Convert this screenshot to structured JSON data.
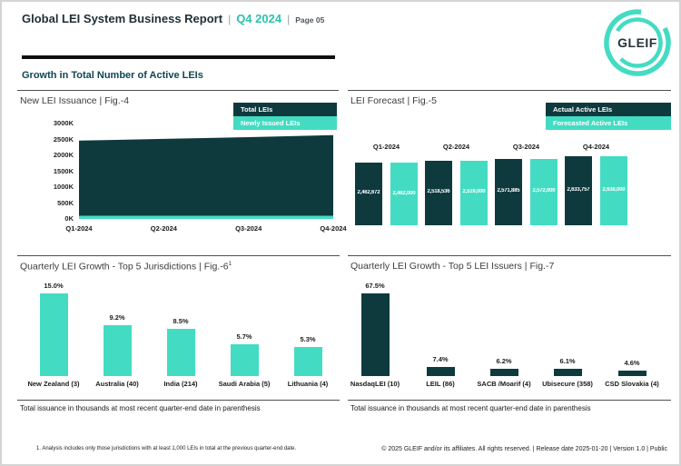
{
  "header": {
    "title": "Global LEI System Business Report",
    "separator": "|",
    "period": "Q4 2024",
    "page_label": "Page 05",
    "logo_text": "GLEIF"
  },
  "section": {
    "title": "Growth in Total Number of Active LEIs"
  },
  "colors": {
    "dark_petrol": "#0e3a3e",
    "teal": "#43dcc3",
    "header_accent": "#2bc3ab"
  },
  "chart_data": [
    {
      "id": "fig4",
      "type": "area",
      "title": "New LEI Issuance | Fig.-4",
      "legend": [
        "Total LEIs",
        "Newly Issued LEIs"
      ],
      "legend_position": "top-right",
      "x": [
        "Q1-2024",
        "Q2-2024",
        "Q3-2024",
        "Q4-2024"
      ],
      "series": [
        {
          "name": "Total LEIs",
          "color": "#0e3a3e",
          "values": [
            2462672,
            2518536,
            2571885,
            2633757
          ]
        },
        {
          "name": "Newly Issued LEIs",
          "color": "#43dcc3",
          "values_estimated": [
            60000,
            60000,
            68000,
            75000
          ]
        }
      ],
      "yticks": [
        "3000K",
        "2500K",
        "2000K",
        "1500K",
        "1000K",
        "500K",
        "0K"
      ],
      "ylim": [
        0,
        3000000
      ],
      "grid": false
    },
    {
      "id": "fig5",
      "type": "bar",
      "title": "LEI Forecast | Fig.-5",
      "legend": [
        "Actual Active LEIs",
        "Forecasted Active LEIs"
      ],
      "legend_position": "top-right",
      "categories": [
        "Q1-2024",
        "Q2-2024",
        "Q3-2024",
        "Q4-2024"
      ],
      "category_label_position": "top",
      "series": [
        {
          "name": "Actual Active LEIs",
          "color": "#0e3a3e",
          "values": [
            2462672,
            2518536,
            2571885,
            2633757
          ],
          "labels": [
            "2,462,672",
            "2,518,536",
            "2,571,885",
            "2,633,757"
          ]
        },
        {
          "name": "Forecasted Active LEIs",
          "color": "#43dcc3",
          "values": [
            2462000,
            2519000,
            2572000,
            2638000
          ],
          "labels": [
            "2,462,000",
            "2,519,000",
            "2,572,000",
            "2,638,000"
          ]
        }
      ],
      "grid": false
    },
    {
      "id": "fig6",
      "type": "bar",
      "title": "Quarterly LEI Growth - Top 5 Jurisdictions | Fig.-6",
      "title_superscript": "1",
      "bar_color": "#43dcc3",
      "categories": [
        "New Zealand (3)",
        "Australia (40)",
        "India (214)",
        "Saudi Arabia (5)",
        "Lithuania (4)"
      ],
      "values": [
        15.0,
        9.2,
        8.5,
        5.7,
        5.3
      ],
      "value_labels": [
        "15.0%",
        "9.2%",
        "8.5%",
        "5.7%",
        "5.3%"
      ],
      "footer": "Total issuance in thousands at most recent quarter-end date in parenthesis",
      "grid": false
    },
    {
      "id": "fig7",
      "type": "bar",
      "title": "Quarterly LEI Growth - Top 5 LEI Issuers | Fig.-7",
      "bar_color": "#0e3a3e",
      "categories": [
        "NasdaqLEI (10)",
        "LEIL (86)",
        "SACB /Moarif (4)",
        "Ubisecure (358)",
        "CSD Slovakia (4)"
      ],
      "values": [
        67.5,
        7.4,
        6.2,
        6.1,
        4.6
      ],
      "value_labels": [
        "67.5%",
        "7.4%",
        "6.2%",
        "6.1%",
        "4.6%"
      ],
      "footer": "Total issuance in thousands at most recent quarter-end date in parenthesis",
      "grid": false
    }
  ],
  "footer": {
    "footnote": "1. Analysis includes only those jurisdictions with at least 1,000 LEIs in total at the previous quarter-end date.",
    "copyright": "© 2025 GLEIF and/or its affiliates. All rights reserved. | Release date 2025-01-20 | Version 1.0 | Public"
  }
}
